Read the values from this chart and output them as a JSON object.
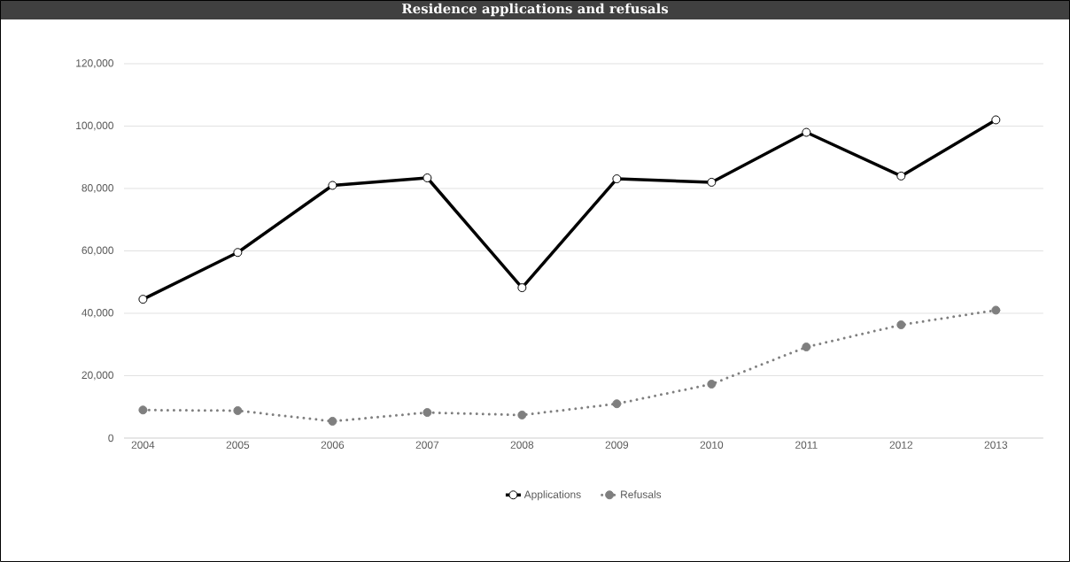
{
  "chart_data": {
    "type": "line",
    "title": "Residence applications and refusals",
    "categories": [
      "2004",
      "2005",
      "2006",
      "2007",
      "2008",
      "2009",
      "2010",
      "2011",
      "2012",
      "2013"
    ],
    "series": [
      {
        "name": "Applications",
        "color": "#000000",
        "marker": "circle",
        "line_style": "solid",
        "values": [
          44500,
          59500,
          81000,
          83400,
          48200,
          83100,
          82000,
          98000,
          84000,
          102000
        ]
      },
      {
        "name": "Refusals",
        "color": "#7f7f7f",
        "marker": "circle",
        "line_style": "dotted",
        "values": [
          9000,
          8800,
          5400,
          8200,
          7400,
          11000,
          17300,
          29200,
          36300,
          41000
        ]
      }
    ],
    "ylim": [
      0,
      120000
    ],
    "yticks": [
      0,
      {
        "value": 20000,
        "label": "20,000"
      },
      {
        "value": 40000,
        "label": "40,000"
      },
      {
        "value": 60000,
        "label": "60,000"
      },
      {
        "value": 80000,
        "label": "80,000"
      },
      {
        "value": 100000,
        "label": "100,000"
      },
      {
        "value": 120000,
        "label": "120,000"
      }
    ],
    "grid": "y",
    "legend": "bottom"
  }
}
